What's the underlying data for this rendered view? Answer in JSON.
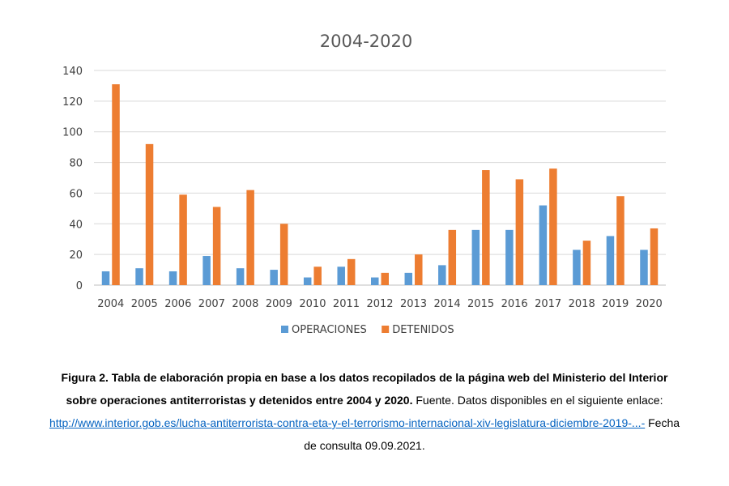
{
  "chart_data": {
    "type": "bar",
    "title": "2004-2020",
    "xlabel": "",
    "ylabel": "",
    "categories": [
      "2004",
      "2005",
      "2006",
      "2007",
      "2008",
      "2009",
      "2010",
      "2011",
      "2012",
      "2013",
      "2014",
      "2015",
      "2016",
      "2017",
      "2018",
      "2019",
      "2020"
    ],
    "series": [
      {
        "name": "OPERACIONES",
        "color": "#5b9bd5",
        "values": [
          9,
          11,
          9,
          19,
          11,
          10,
          5,
          12,
          5,
          8,
          13,
          36,
          36,
          52,
          23,
          32,
          23
        ]
      },
      {
        "name": "DETENIDOS",
        "color": "#ed7d31",
        "values": [
          131,
          92,
          59,
          51,
          62,
          40,
          12,
          17,
          8,
          20,
          36,
          75,
          69,
          76,
          29,
          58,
          37
        ]
      }
    ],
    "ylim": [
      0,
      140
    ],
    "yticks": [
      0,
      20,
      40,
      60,
      80,
      100,
      120,
      140
    ],
    "grid": true,
    "legend_position": "bottom"
  },
  "caption": {
    "bold_text": "Figura 2. Tabla de elaboración propia en base a los datos recopilados de la página web del Ministerio del Interior sobre operaciones antiterroristas y detenidos entre 2004 y 2020.",
    "text_after_bold": " Fuente. Datos disponibles en el siguiente enlace: ",
    "link_text": "http://www.interior.gob.es/lucha-antiterrorista-contra-eta-y-el-terrorismo-internacional-xiv-legislatura-diciembre-2019-...-",
    "text_after_link": " Fecha de consulta 09.09.2021."
  }
}
